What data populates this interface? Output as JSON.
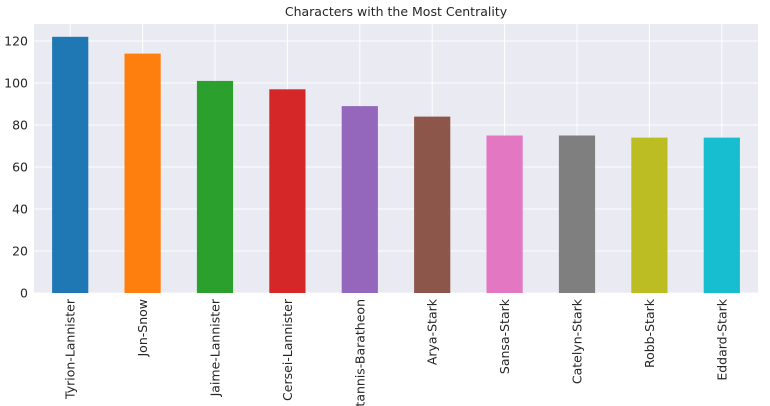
{
  "chart_data": {
    "type": "bar",
    "title": "Characters with the Most Centrality",
    "xlabel": "",
    "ylabel": "",
    "categories": [
      "Tyrion-Lannister",
      "Jon-Snow",
      "Jaime-Lannister",
      "Cersei-Lannister",
      "Stannis-Baratheon",
      "Arya-Stark",
      "Sansa-Stark",
      "Catelyn-Stark",
      "Robb-Stark",
      "Eddard-Stark"
    ],
    "values": [
      122,
      114,
      101,
      97,
      89,
      84,
      75,
      75,
      74,
      74
    ],
    "colors": [
      "#1f77b4",
      "#ff7f0e",
      "#2ca02c",
      "#d62728",
      "#9467bd",
      "#8c564b",
      "#e377c2",
      "#7f7f7f",
      "#bcbd22",
      "#17becf"
    ],
    "ylim": [
      0,
      128.1
    ],
    "yticks": [
      0,
      20,
      40,
      60,
      80,
      100,
      120
    ],
    "grid": true,
    "background": "#eaeaf2",
    "legend": "none"
  }
}
